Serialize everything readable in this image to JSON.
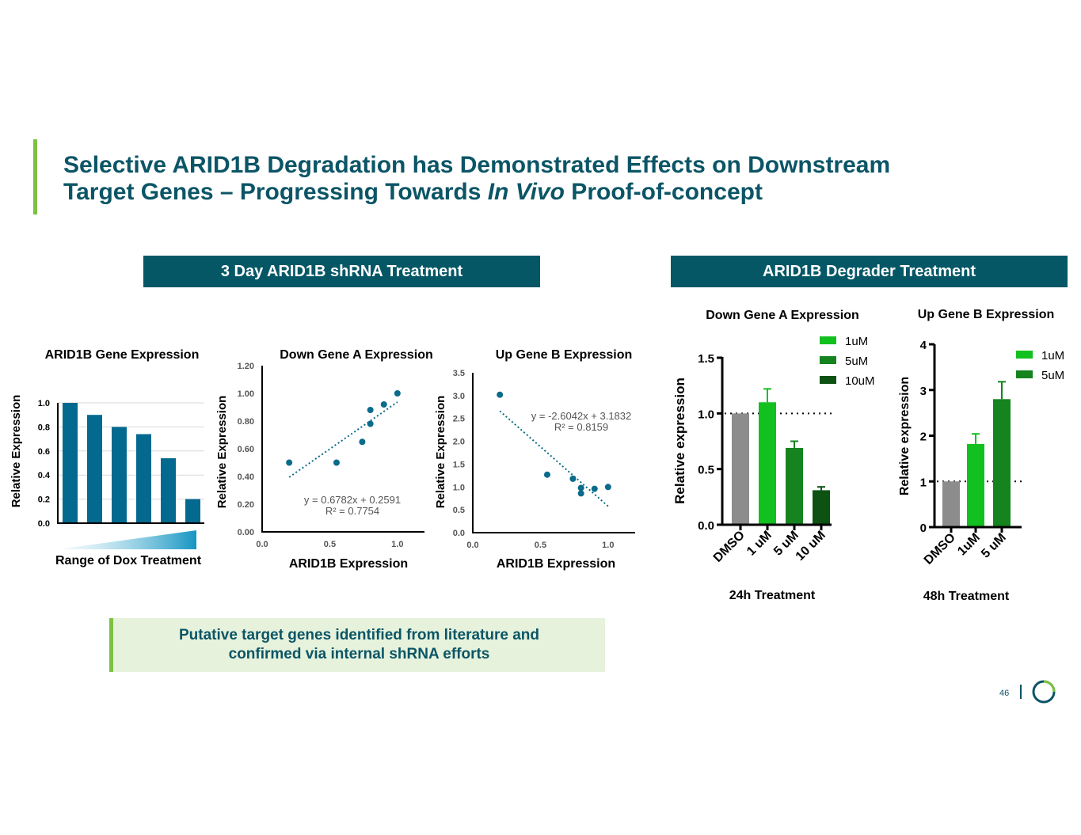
{
  "title": {
    "line1": "Selective ARID1B Degradation has Demonstrated Effects on Downstream",
    "line2_pre": "Target Genes – Progressing Towards ",
    "line2_italic": "In Vivo",
    "line2_post": " Proof-of-concept"
  },
  "sections": {
    "shrna": "3 Day ARID1B shRNA Treatment",
    "degrader": "ARID1B Degrader Treatment"
  },
  "callout": {
    "line1": "Putative target genes identified from literature and",
    "line2": "confirmed via internal shRNA efforts"
  },
  "page_number": "46",
  "dox_label": "Range of Dox Treatment",
  "colors": {
    "teal": "#055766",
    "bar_blue": "#04698f",
    "accent_green": "#7cc242",
    "c1uM": "#12c020",
    "c5uM": "#15831e",
    "c10uM": "#0d5213",
    "dmso": "#8c8c8c"
  },
  "chart_data": [
    {
      "id": "arid1b_expr",
      "type": "bar",
      "title": "ARID1B Gene Expression",
      "ylabel": "Relative  Expression",
      "xlabel": "Range of Dox Treatment",
      "ylim": [
        0,
        1.0
      ],
      "yticks": [
        "0.0",
        "0.2",
        "0.4",
        "0.6",
        "0.8",
        "1.0"
      ],
      "values": [
        1.0,
        0.9,
        0.8,
        0.74,
        0.54,
        0.2
      ]
    },
    {
      "id": "down_a_shrna",
      "type": "scatter",
      "title": "Down Gene A Expression",
      "xlabel": "ARID1B Expression",
      "ylabel": "Relative  Expression",
      "xlim": [
        0,
        1.2
      ],
      "ylim": [
        0,
        1.2
      ],
      "xticks": [
        0.0,
        0.5,
        1.0
      ],
      "xtick_labels": [
        "0.0",
        "0.5",
        "1.0"
      ],
      "yticks": [
        0,
        0.2,
        0.4,
        0.6,
        0.8,
        1.0,
        1.2
      ],
      "ytick_labels": [
        "0.00",
        "0.20",
        "0.40",
        "0.60",
        "0.80",
        "1.00",
        "1.20"
      ],
      "x": [
        0.2,
        0.55,
        0.74,
        0.8,
        0.8,
        0.9,
        1.0
      ],
      "y": [
        0.5,
        0.5,
        0.65,
        0.78,
        0.88,
        0.92,
        1.0
      ],
      "trend": {
        "slope": 0.6782,
        "intercept": 0.2591,
        "x_range": [
          0.2,
          1.0
        ]
      },
      "equation": "y = 0.6782x + 0.2591",
      "r2": "R² = 0.7754"
    },
    {
      "id": "up_b_shrna",
      "type": "scatter",
      "title": "Up Gene B Expression",
      "xlabel": "ARID1B Expression",
      "ylabel": "Relative  Expression",
      "xlim": [
        0,
        1.2
      ],
      "ylim": [
        0,
        3.5
      ],
      "xticks": [
        0.0,
        0.5,
        1.0
      ],
      "xtick_labels": [
        "0.0",
        "0.5",
        "1.0"
      ],
      "yticks": [
        0,
        0.5,
        1.0,
        1.5,
        2.0,
        2.5,
        3.0,
        3.5
      ],
      "ytick_labels": [
        "0.0",
        "0.5",
        "1.0",
        "1.5",
        "2.0",
        "2.5",
        "3.0",
        "3.5"
      ],
      "x": [
        0.2,
        0.55,
        0.74,
        0.8,
        0.8,
        0.9,
        1.0
      ],
      "y": [
        3.02,
        1.27,
        1.18,
        0.98,
        0.86,
        0.96,
        1.0
      ],
      "trend": {
        "slope": -2.6042,
        "intercept": 3.1832,
        "x_range": [
          0.2,
          1.0
        ]
      },
      "equation": "y = -2.6042x + 3.1832",
      "r2": "R² = 0.8159"
    },
    {
      "id": "down_a_degrader",
      "type": "bar",
      "title": "Down Gene A Expression",
      "ylabel": "Relative expression",
      "xlabel": "24h Treatment",
      "ylim": [
        0,
        1.5
      ],
      "yticks": [
        0,
        0.5,
        1.0,
        1.5
      ],
      "ytick_labels": [
        "0.0",
        "0.5",
        "1.0",
        "1.5"
      ],
      "categories": [
        "DMSO",
        "1 uM",
        "5 uM",
        "10 uM"
      ],
      "values": [
        1.0,
        1.1,
        0.69,
        0.31
      ],
      "errors": [
        0,
        0.12,
        0.06,
        0.03
      ],
      "reference": 1.0,
      "legend": [
        "1uM",
        "5uM",
        "10uM"
      ]
    },
    {
      "id": "up_b_degrader",
      "type": "bar",
      "title": "Up Gene B Expression",
      "ylabel": "Relative expression",
      "xlabel": "48h Treatment",
      "ylim": [
        0,
        4
      ],
      "yticks": [
        0,
        1,
        2,
        3,
        4
      ],
      "ytick_labels": [
        "0",
        "1",
        "2",
        "3",
        "4"
      ],
      "categories": [
        "DMSO",
        "1uM",
        "5 uM"
      ],
      "values": [
        1.0,
        1.82,
        2.8
      ],
      "errors": [
        0,
        0.22,
        0.38
      ],
      "reference": 1.0,
      "legend": [
        "1uM",
        "5uM"
      ]
    }
  ]
}
